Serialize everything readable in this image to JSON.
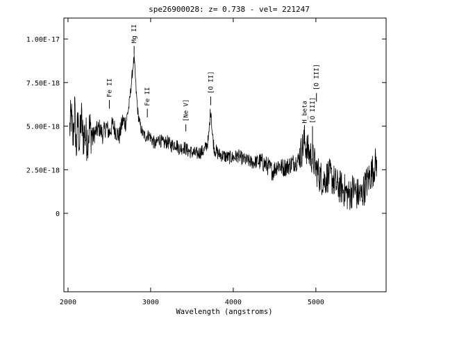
{
  "chart_data": {
    "type": "line",
    "title": "spe26900028: z= 0.738  -  vel= 221247",
    "xlabel": "Wavelength (angstroms)",
    "ylabel": "",
    "xlim": [
      1950,
      5850
    ],
    "ylim": [
      -4.5e-18,
      1.12e-17
    ],
    "xticks": [
      {
        "value": 2000,
        "label": "2000"
      },
      {
        "value": 3000,
        "label": "3000"
      },
      {
        "value": 4000,
        "label": "4000"
      },
      {
        "value": 5000,
        "label": "5000"
      }
    ],
    "yticks": [
      {
        "value": 0,
        "label": "0"
      },
      {
        "value": 2.5e-18,
        "label": "2.50E-18"
      },
      {
        "value": 5e-18,
        "label": "5.00E-18"
      },
      {
        "value": 7.5e-18,
        "label": "7.50E-18"
      },
      {
        "value": 1e-17,
        "label": "1.00E-17"
      }
    ],
    "grid": false,
    "annotations": [
      {
        "label": "Fe II",
        "x": 2500,
        "line_top": 6.5e-18,
        "line_bottom": 6e-18
      },
      {
        "label": "Mg II",
        "x": 2800,
        "line_top": 9.6e-18,
        "line_bottom": 9.1e-18
      },
      {
        "label": "Fe II",
        "x": 2960,
        "line_top": 6e-18,
        "line_bottom": 5.5e-18
      },
      {
        "label": "[Ne V]",
        "x": 3426,
        "line_top": 5.1e-18,
        "line_bottom": 4.7e-18
      },
      {
        "label": "[O II]",
        "x": 3727,
        "line_top": 6.7e-18,
        "line_bottom": 6.2e-18
      },
      {
        "label": "H_beta",
        "x": 4861,
        "line_top": 5e-18,
        "line_bottom": 4.6e-18
      },
      {
        "label": "[O III]",
        "x": 4959,
        "line_top": 5e-18,
        "line_bottom": 4e-18
      },
      {
        "label": "[O III]",
        "x": 5007,
        "line_top": 6.9e-18,
        "line_bottom": 6.4e-18
      }
    ],
    "series": [
      {
        "color": "#000000",
        "x": [
          2020,
          2040,
          2060,
          2080,
          2100,
          2120,
          2140,
          2160,
          2180,
          2200,
          2230,
          2260,
          2300,
          2340,
          2380,
          2420,
          2460,
          2500,
          2540,
          2580,
          2620,
          2660,
          2700,
          2740,
          2770,
          2790,
          2800,
          2810,
          2825,
          2845,
          2870,
          2900,
          2940,
          2980,
          3020,
          3060,
          3100,
          3150,
          3200,
          3250,
          3300,
          3350,
          3400,
          3450,
          3500,
          3550,
          3600,
          3650,
          3700,
          3720,
          3730,
          3745,
          3770,
          3820,
          3880,
          3940,
          4000,
          4060,
          4120,
          4180,
          4240,
          4300,
          4360,
          4420,
          4480,
          4540,
          4600,
          4660,
          4720,
          4780,
          4830,
          4860,
          4880,
          4920,
          4960,
          5000,
          5050,
          5100,
          5150,
          5200,
          5250,
          5300,
          5350,
          5400,
          5450,
          5500,
          5550,
          5600,
          5650,
          5700,
          5740
        ],
        "y": [
          4.8e-18,
          5.6e-18,
          4.2e-18,
          6e-18,
          3.6e-18,
          5.3e-18,
          3.9e-18,
          5.6e-18,
          4.3e-18,
          4.6e-18,
          4.2e-18,
          4.9e-18,
          4.4e-18,
          4.7e-18,
          4.9e-18,
          4.5e-18,
          5e-18,
          4.6e-18,
          5.1e-18,
          4.7e-18,
          4.4e-18,
          5.3e-18,
          5.2e-18,
          6.2e-18,
          7.6e-18,
          8.6e-18,
          8.8e-18,
          8.2e-18,
          7e-18,
          5.8e-18,
          5.1e-18,
          4.6e-18,
          4.4e-18,
          4.5e-18,
          4.2e-18,
          3.9e-18,
          4.3e-18,
          4e-18,
          4.1e-18,
          3.9e-18,
          4e-18,
          3.7e-18,
          3.8e-18,
          3.6e-18,
          3.5e-18,
          3.4e-18,
          3.5e-18,
          3.6e-18,
          4.2e-18,
          5.6e-18,
          6e-18,
          4.6e-18,
          3.7e-18,
          3.4e-18,
          3.3e-18,
          3.2e-18,
          3.2e-18,
          3.3e-18,
          3.1e-18,
          3e-18,
          2.9e-18,
          3e-18,
          2.9e-18,
          2.7e-18,
          2.4e-18,
          2.8e-18,
          2.6e-18,
          2.7e-18,
          2.9e-18,
          3e-18,
          3.6e-18,
          4.2e-18,
          3.8e-18,
          3.4e-18,
          3.2e-18,
          2.6e-18,
          2.1e-18,
          1.9e-18,
          2.2e-18,
          2e-18,
          1.6e-18,
          1.5e-18,
          1.3e-18,
          1e-18,
          1.4e-18,
          1.1e-18,
          1e-18,
          1.6e-18,
          2.1e-18,
          2.6e-18,
          3e-18
        ]
      }
    ]
  }
}
